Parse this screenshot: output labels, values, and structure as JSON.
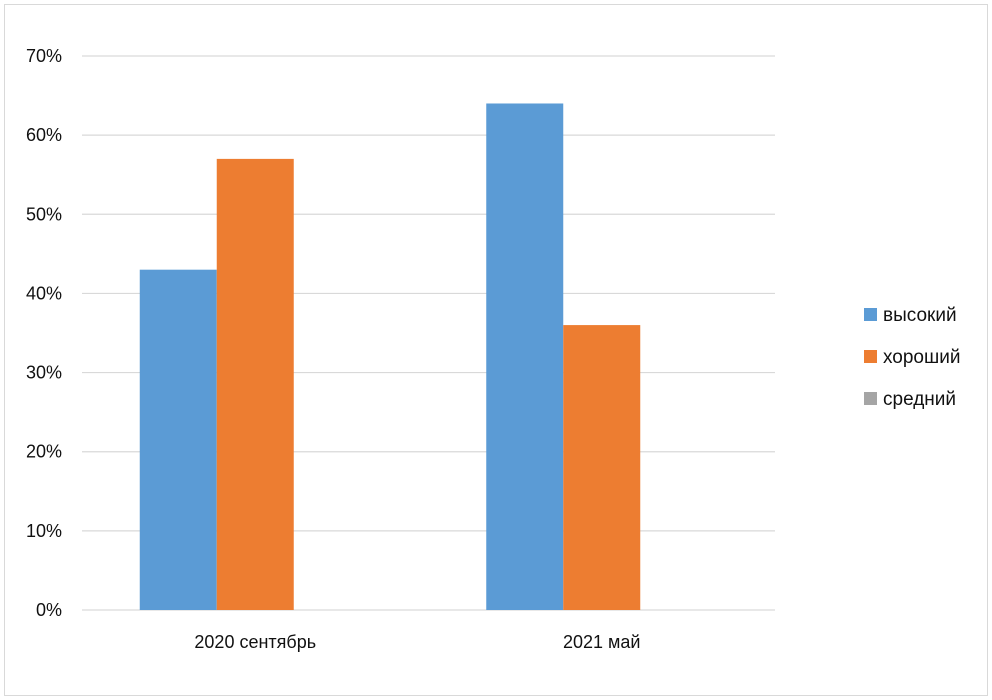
{
  "chart_data": {
    "type": "bar",
    "title": "",
    "xlabel": "",
    "ylabel": "",
    "categories": [
      "2020 сентябрь",
      "2021 май"
    ],
    "series": [
      {
        "name": "высокий",
        "color": "#5b9bd5",
        "values": [
          43,
          64
        ]
      },
      {
        "name": "хороший",
        "color": "#ed7d31",
        "values": [
          57,
          36
        ]
      },
      {
        "name": "средний",
        "color": "#a5a5a5",
        "values": [
          0,
          0
        ]
      }
    ],
    "ylim": [
      0,
      70
    ],
    "yticks": [
      0,
      10,
      20,
      30,
      40,
      50,
      60,
      70
    ],
    "ytick_labels": [
      "0%",
      "10%",
      "20%",
      "30%",
      "40%",
      "50%",
      "60%",
      "70%"
    ],
    "grid": true,
    "legend_position": "right"
  }
}
